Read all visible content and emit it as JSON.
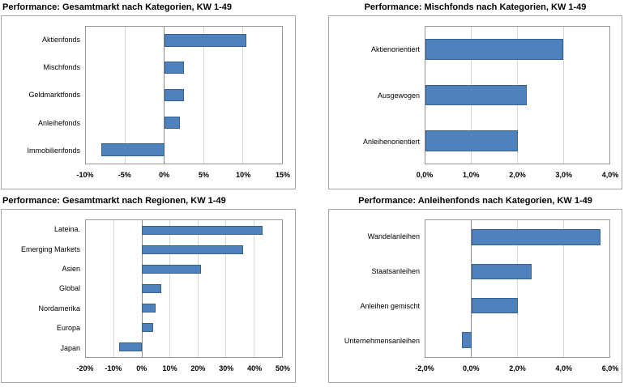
{
  "colors": {
    "bar_fill": "#4f81bd",
    "bar_border": "#36618e",
    "gridline": "#d6d6d6",
    "zero_axis": "#8c8c8c",
    "plot_border": "#959595",
    "frame_border": "#a6a6a6",
    "text": "#000000",
    "background": "#ffffff"
  },
  "charts": [
    {
      "title": "Performance: Gesamtmarkt nach Kategorien, KW 1-49",
      "chart_data": {
        "type": "bar",
        "orientation": "horizontal",
        "categories": [
          "Aktienfonds",
          "Mischfonds",
          "Geldmarktfonds",
          "Anleihefonds",
          "Immobilienfonds"
        ],
        "values": [
          10.5,
          2.5,
          2.5,
          2.0,
          -8.0
        ],
        "unit": "%",
        "xlim": [
          -10,
          15
        ],
        "ticks": [
          -10,
          -5,
          0,
          5,
          10,
          15
        ],
        "tick_labels": [
          "-10%",
          "-5%",
          "0%",
          "5%",
          "10%",
          "15%"
        ],
        "grid": true,
        "legend": "none"
      }
    },
    {
      "title": "Performance: Mischfonds nach Kategorien, KW 1-49",
      "chart_data": {
        "type": "bar",
        "orientation": "horizontal",
        "categories": [
          "Aktienorientiert",
          "Ausgewogen",
          "Anleihenorientiert"
        ],
        "values": [
          3.0,
          2.2,
          2.0
        ],
        "unit": "%",
        "xlim": [
          0,
          4
        ],
        "ticks": [
          0,
          1,
          2,
          3,
          4
        ],
        "tick_labels": [
          "0,0%",
          "1,0%",
          "2,0%",
          "3,0%",
          "4,0%"
        ],
        "grid": true,
        "legend": "none"
      }
    },
    {
      "title": "Performance: Gesamtmarkt nach Regionen, KW 1-49",
      "chart_data": {
        "type": "bar",
        "orientation": "horizontal",
        "categories": [
          "Lateina.",
          "Emerging Markets",
          "Asien",
          "Global",
          "Nordamerika",
          "Europa",
          "Japan"
        ],
        "values": [
          43.0,
          36.0,
          21.0,
          7.0,
          5.0,
          4.0,
          -8.0
        ],
        "unit": "%",
        "xlim": [
          -20,
          50
        ],
        "ticks": [
          -20,
          -10,
          0,
          10,
          20,
          30,
          40,
          50
        ],
        "tick_labels": [
          "-20%",
          "-10%",
          "0%",
          "10%",
          "20%",
          "30%",
          "40%",
          "50%"
        ],
        "grid": true,
        "legend": "none"
      }
    },
    {
      "title": "Performance: Anleihenfonds nach Kategorien, KW 1-49",
      "chart_data": {
        "type": "bar",
        "orientation": "horizontal",
        "categories": [
          "Wandelanleihen",
          "Staatsanleihen",
          "Anleihen gemischt",
          "Unternehmensanleihen"
        ],
        "values": [
          5.6,
          2.6,
          2.0,
          -0.4
        ],
        "unit": "%",
        "xlim": [
          -2,
          6
        ],
        "ticks": [
          -2,
          0,
          2,
          4,
          6
        ],
        "tick_labels": [
          "-2,0%",
          "0,0%",
          "2,0%",
          "4,0%",
          "6,0%"
        ],
        "grid": true,
        "legend": "none"
      }
    }
  ]
}
